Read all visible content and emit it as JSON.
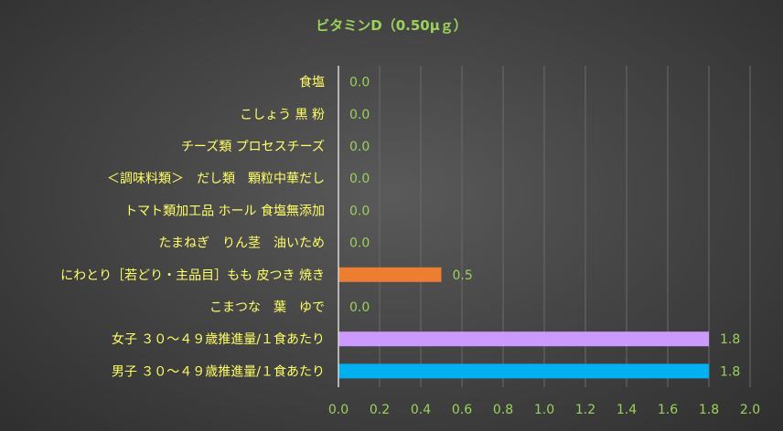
{
  "chart_data": {
    "type": "bar",
    "orientation": "horizontal",
    "title": "ビタミンD（0.50μｇ）",
    "categories": [
      "食塩",
      "こしょう 黒 粉",
      "チーズ類 プロセスチーズ",
      "＜調味料類＞　だし類　顆粒中華だし",
      "トマト類加工品 ホール 食塩無添加",
      "たまねぎ　りん茎　油いため",
      "にわとり［若どり・主品目］もも 皮つき 焼き",
      "こまつな　葉　ゆで",
      "女子 ３０～４９歳推進量/１食あたり",
      "男子 ３０～４９歳推進量/１食あたり"
    ],
    "values": [
      0.0,
      0.0,
      0.0,
      0.0,
      0.0,
      0.0,
      0.5,
      0.0,
      1.8,
      1.8
    ],
    "value_labels": [
      "0.0",
      "0.0",
      "0.0",
      "0.0",
      "0.0",
      "0.0",
      "0.5",
      "0.0",
      "1.8",
      "1.8"
    ],
    "bar_colors": [
      "#ed7d31",
      "#ed7d31",
      "#ed7d31",
      "#ed7d31",
      "#ed7d31",
      "#ed7d31",
      "#ed7d31",
      "#ed7d31",
      "#cc99ff",
      "#00b0f0"
    ],
    "xlim": [
      0,
      2.0
    ],
    "x_ticks": [
      "0.0",
      "0.2",
      "0.4",
      "0.6",
      "0.8",
      "1.0",
      "1.2",
      "1.4",
      "1.6",
      "1.8",
      "2.0"
    ],
    "grid": true,
    "xlabel": "",
    "ylabel": "",
    "colors": {
      "title": "#9bd25b",
      "category_text": "#ffff66",
      "value_text": "#9bd25b",
      "grid": "#6a6a6a"
    }
  }
}
